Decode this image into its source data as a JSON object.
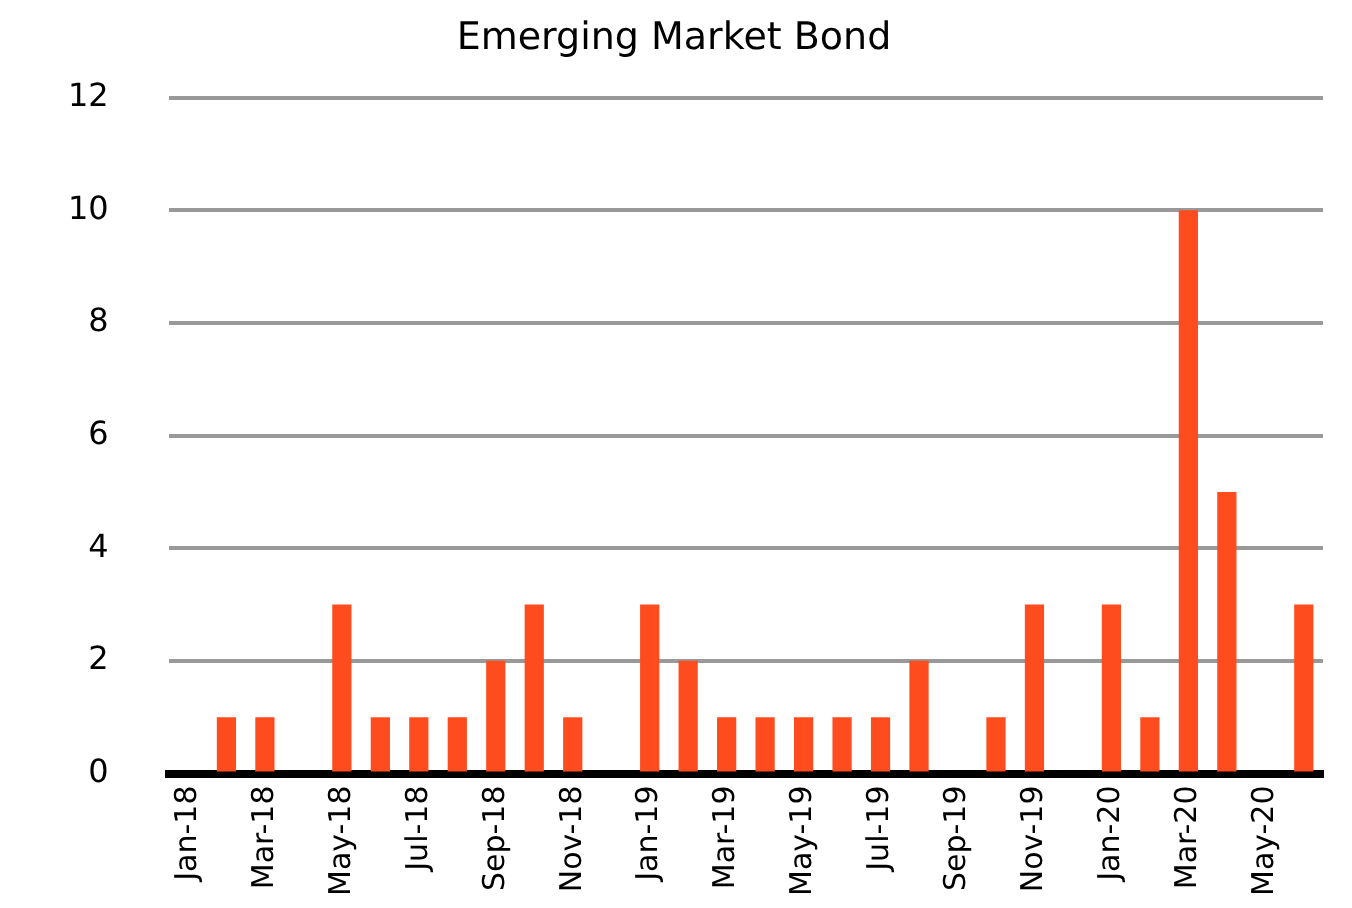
{
  "chart_data": {
    "type": "bar",
    "title": "Emerging Market Bond",
    "categories": [
      "Jan-18",
      null,
      "Mar-18",
      null,
      "May-18",
      null,
      "Jul-18",
      null,
      "Sep-18",
      null,
      "Nov-18",
      null,
      "Jan-19",
      null,
      "Mar-19",
      null,
      "May-19",
      null,
      "Jul-19",
      null,
      "Sep-19",
      null,
      "Nov-19",
      null,
      "Jan-20",
      null,
      "Mar-20",
      null,
      "May-20",
      null
    ],
    "values": [
      0,
      1,
      1,
      0,
      3,
      1,
      1,
      1,
      2,
      3,
      1,
      0,
      3,
      2,
      1,
      1,
      1,
      1,
      1,
      2,
      0,
      1,
      3,
      0,
      3,
      1,
      10,
      5,
      0,
      3
    ],
    "color": "#ff4c1f",
    "ylim": [
      0,
      12
    ],
    "yticks": [
      0,
      2,
      4,
      6,
      8,
      10,
      12
    ],
    "grid": "y",
    "legend": false
  }
}
